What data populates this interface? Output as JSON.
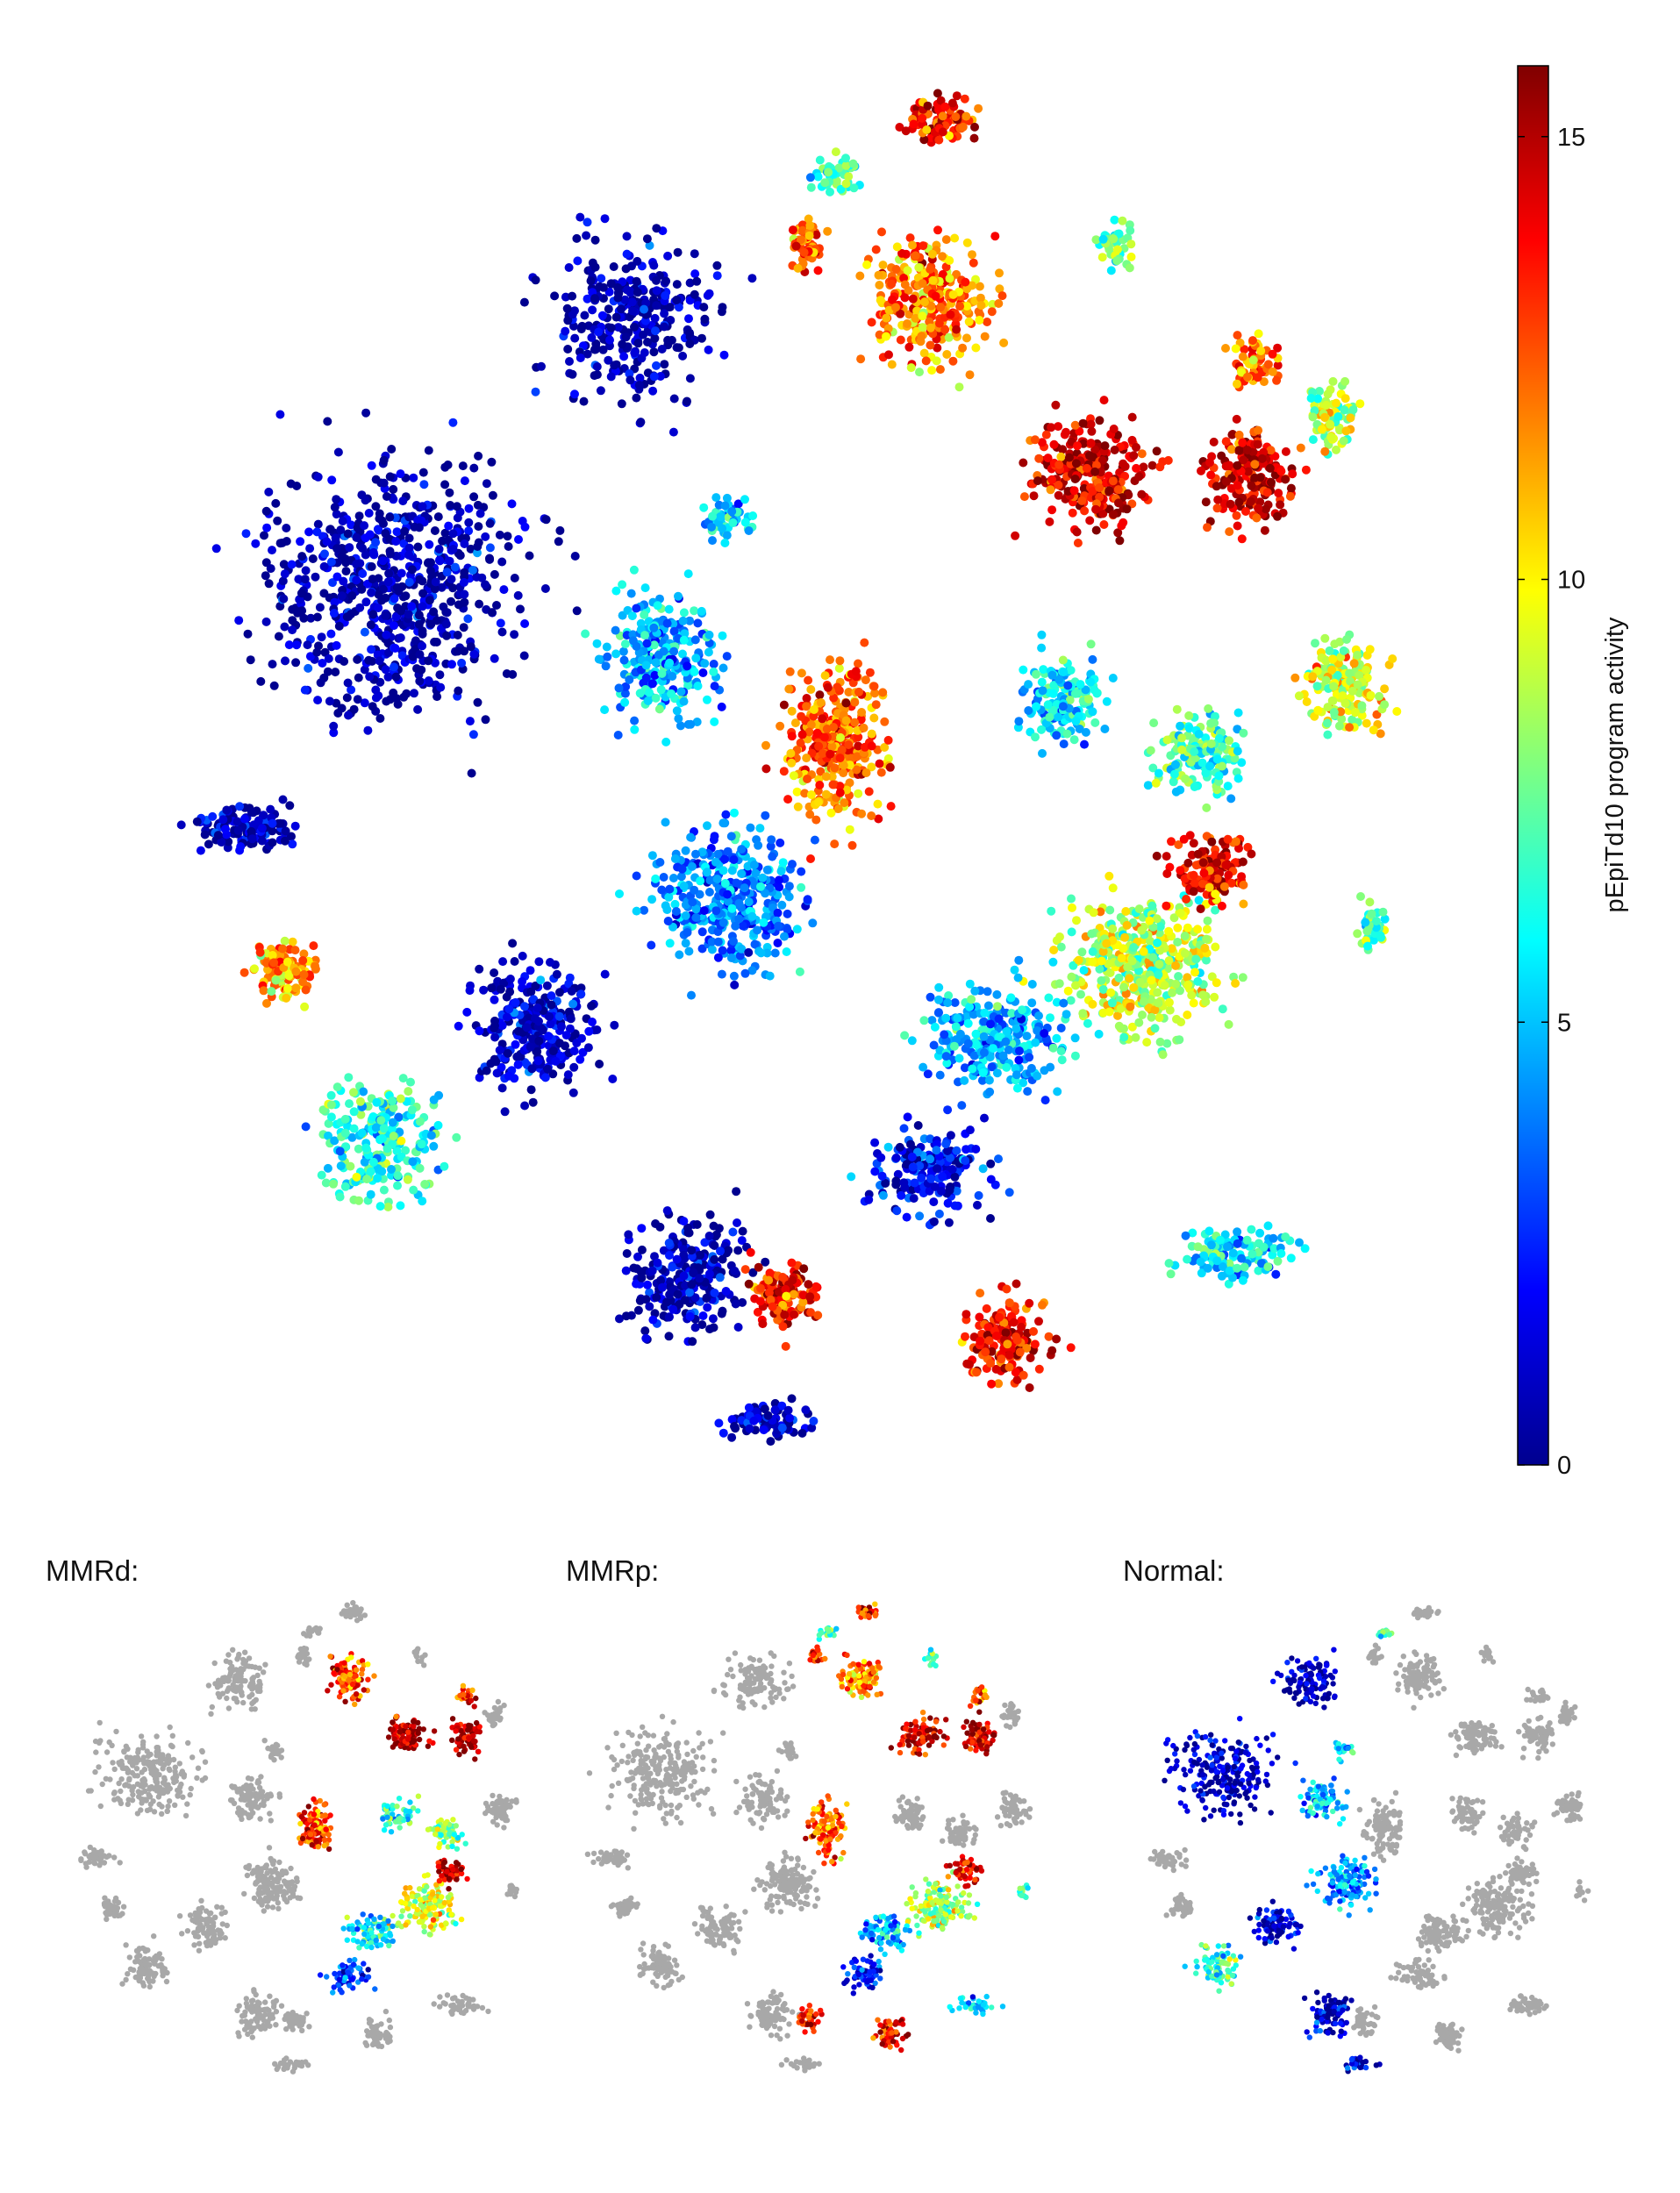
{
  "chart_data": {
    "type": "scatter",
    "main_panel": {
      "colorbar": {
        "label": "pEpiTd10 program activity",
        "range": [
          0,
          15.8
        ],
        "ticks": [
          0,
          5,
          10,
          15
        ],
        "colormap": "jet",
        "colormap_stops": [
          "#00008f",
          "#0000ff",
          "#00ffff",
          "#ffff00",
          "#ff0000",
          "#800000"
        ]
      }
    },
    "subpanels": [
      {
        "label": "MMRd:",
        "background_color": "#a8a8a8"
      },
      {
        "label": "MMRp:",
        "background_color": "#a8a8a8"
      },
      {
        "label": "Normal:",
        "background_color": "#a8a8a8"
      }
    ]
  }
}
